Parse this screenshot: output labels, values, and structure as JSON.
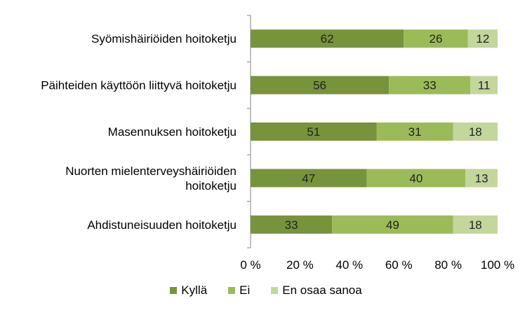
{
  "chart_data": {
    "type": "bar",
    "orientation": "horizontal",
    "stacked": true,
    "categories": [
      [
        "Syömishäiriöiden hoitoketju"
      ],
      [
        "Päihteiden käyttöön liittyvä hoitoketju"
      ],
      [
        "Masennuksen hoitoketju"
      ],
      [
        "Nuorten mielenterveyshäiriöiden",
        "hoitoketju"
      ],
      [
        "Ahdistuneisuuden hoitoketju"
      ]
    ],
    "series": [
      {
        "name": "Kyllä",
        "color": "#77933c",
        "values": [
          62,
          56,
          51,
          47,
          33
        ]
      },
      {
        "name": "Ei",
        "color": "#9bbb59",
        "values": [
          26,
          33,
          31,
          40,
          49
        ]
      },
      {
        "name": "En osaa sanoa",
        "color": "#c3d69b",
        "values": [
          12,
          11,
          18,
          13,
          18
        ]
      }
    ],
    "xlim": [
      0,
      100
    ],
    "x_ticks": [
      "0 %",
      "20 %",
      "40 %",
      "60 %",
      "80 %",
      "100 %"
    ],
    "grid": false,
    "legend": "bottom"
  }
}
